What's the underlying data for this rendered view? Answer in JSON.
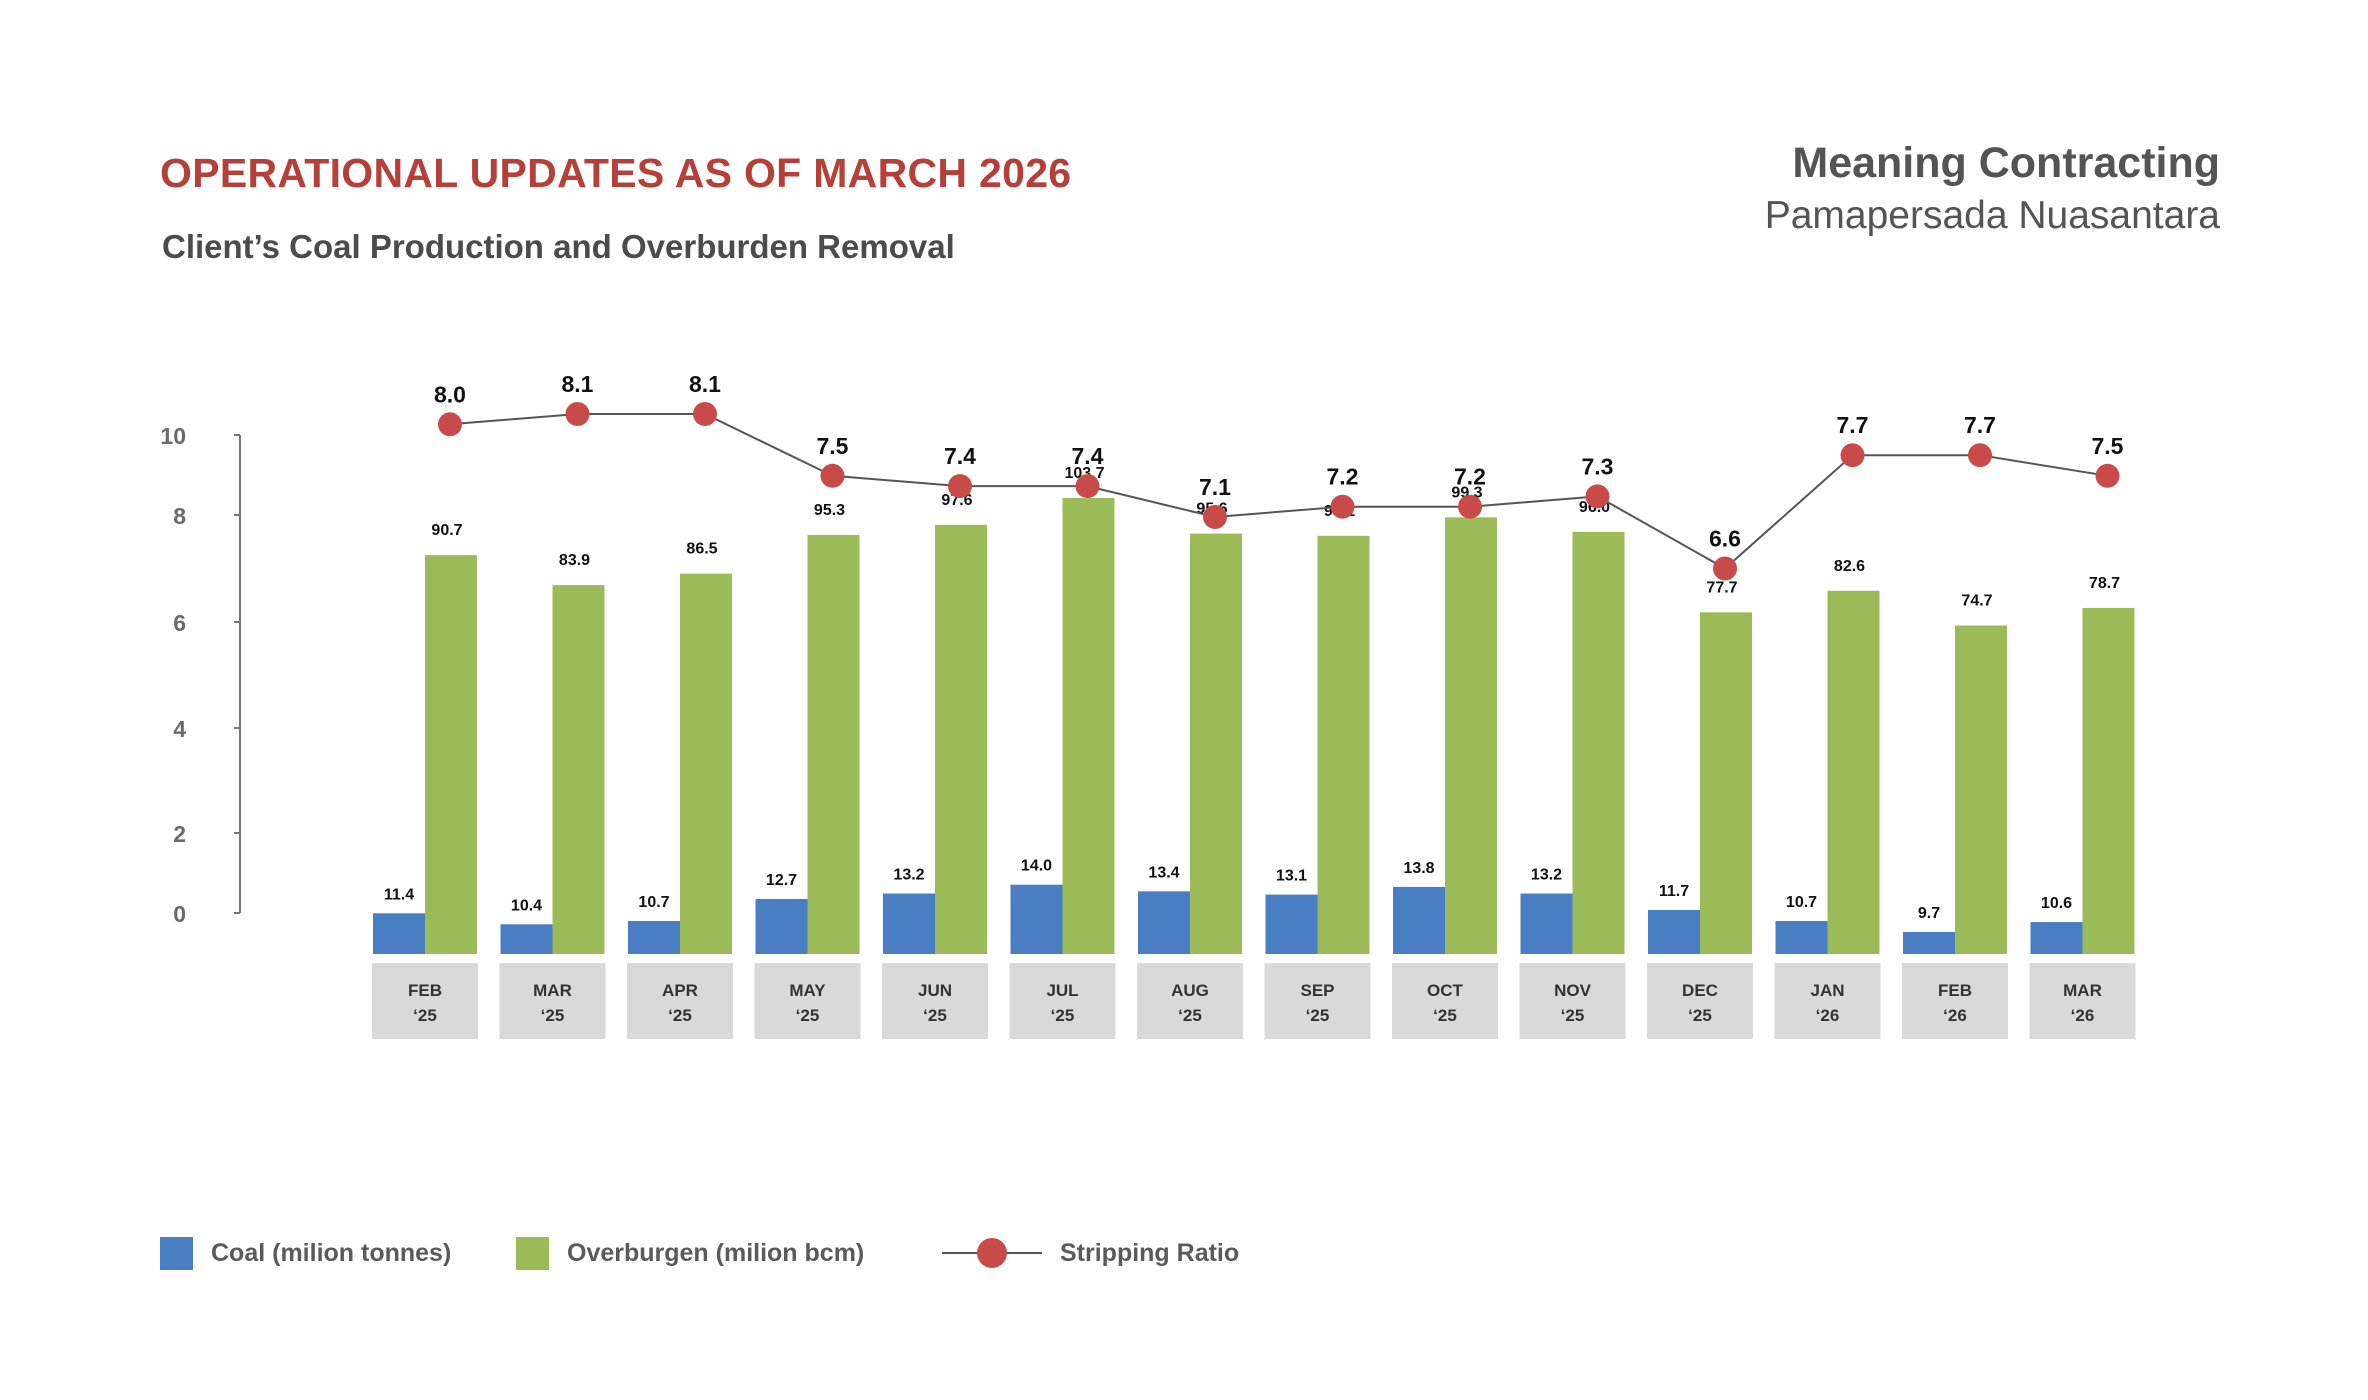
{
  "header": {
    "title": "OPERATIONAL UPDATES AS OF MARCH 2026",
    "subtitle": "Client’s Coal Production and Overburden Removal",
    "brand_line1": "Meaning Contracting",
    "brand_line2": "Pamapersada Nuasantara"
  },
  "colors": {
    "title": "#B5403A",
    "coal": "#4A7EC2",
    "overburden": "#9BBB59",
    "ratio_marker": "#C84B4A",
    "ratio_line": "#555555",
    "category_box": "#D9D9D9"
  },
  "legend": {
    "coal": "Coal (milion tonnes)",
    "overburden": "Overburgen (milion bcm)",
    "ratio": "Stripping Ratio"
  },
  "chart_data": {
    "type": "bar",
    "categories": [
      [
        "FEB",
        "‘25"
      ],
      [
        "MAR",
        "‘25"
      ],
      [
        "APR",
        "‘25"
      ],
      [
        "MAY",
        "‘25"
      ],
      [
        "JUN",
        "‘25"
      ],
      [
        "JUL",
        "‘25"
      ],
      [
        "AUG",
        "‘25"
      ],
      [
        "SEP",
        "‘25"
      ],
      [
        "OCT",
        "‘25"
      ],
      [
        "NOV",
        "‘25"
      ],
      [
        "DEC",
        "‘25"
      ],
      [
        "JAN",
        "‘26"
      ],
      [
        "FEB",
        "‘26"
      ],
      [
        "MAR",
        "‘26"
      ]
    ],
    "y_ticks": [
      0,
      2,
      4,
      6,
      8,
      10
    ],
    "series": [
      {
        "name": "Coal (milion tonnes)",
        "type": "bar",
        "values": [
          11.4,
          10.4,
          10.7,
          12.7,
          13.2,
          14.0,
          13.4,
          13.1,
          13.8,
          13.2,
          11.7,
          10.7,
          9.7,
          10.6
        ],
        "labels": [
          "11.4",
          "10.4",
          "10.7",
          "12.7",
          "13.2",
          "14.0",
          "13.4",
          "13.1",
          "13.8",
          "13.2",
          "11.7",
          "10.7",
          "9.7",
          "10.6"
        ]
      },
      {
        "name": "Overburgen (milion bcm)",
        "type": "bar",
        "values": [
          90.7,
          83.9,
          86.5,
          95.3,
          97.6,
          103.7,
          95.6,
          95.1,
          99.3,
          96.0,
          77.7,
          82.6,
          74.7,
          78.7
        ],
        "labels": [
          "90.7",
          "83.9",
          "86.5",
          "95.3",
          "97.6",
          "103.7",
          "95.6",
          "95.1",
          "99.3",
          "96.0",
          "77.7",
          "82.6",
          "74.7",
          "78.7"
        ]
      },
      {
        "name": "Stripping Ratio",
        "type": "line",
        "values": [
          8.0,
          8.1,
          8.1,
          7.5,
          7.4,
          7.4,
          7.1,
          7.2,
          7.2,
          7.3,
          6.6,
          7.7,
          7.7,
          7.5
        ],
        "labels": [
          "8.0",
          "8.1",
          "8.1",
          "7.5",
          "7.4",
          "7.4",
          "7.1",
          "7.2",
          "7.2",
          "7.3",
          "6.6",
          "7.7",
          "7.7",
          "7.5"
        ]
      }
    ],
    "grid": false,
    "legend_position": "bottom-left"
  }
}
